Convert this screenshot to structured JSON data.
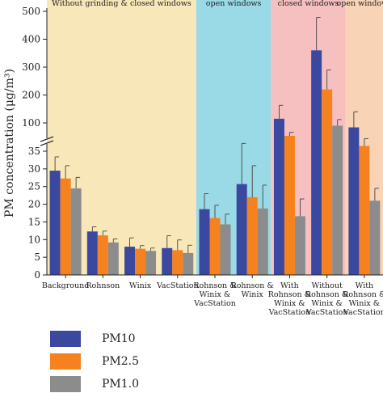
{
  "chart_data": {
    "type": "bar",
    "ylabel": "PM concentration (μg/m³)",
    "y_lower_ticks": [
      0,
      5,
      10,
      15,
      20,
      25,
      30,
      35
    ],
    "y_upper_ticks": [
      100,
      200,
      300,
      400,
      500
    ],
    "y_break": [
      37,
      60
    ],
    "categories": [
      [
        "Background"
      ],
      [
        "Rohnson"
      ],
      [
        "Winix"
      ],
      [
        "VacStation"
      ],
      [
        "Rohnson &",
        "Winix &",
        "VacStation"
      ],
      [
        "Rohnson &",
        "Winix"
      ],
      [
        "With",
        "Rohnson &",
        "Winix &",
        "VacStation"
      ],
      [
        "Without",
        "Rohnson &",
        "Winix &",
        "VacStation"
      ],
      [
        "With",
        "Rohnson &",
        "Winix &",
        "VacStation"
      ]
    ],
    "bands": [
      {
        "label": "Without grinding & closed windows",
        "color": "#f8e7b8",
        "from": 0,
        "to": 3
      },
      {
        "label": "open windows",
        "color": "#9ad9e6",
        "from": 4,
        "to": 5
      },
      {
        "label": "closed windows",
        "color": "#f6c0c0",
        "from": 6,
        "to": 7
      },
      {
        "label": "open windows",
        "color": "#f8d3b6",
        "from": 8,
        "to": 8
      }
    ],
    "series": [
      {
        "name": "PM10",
        "color": "#3a48a0",
        "values": [
          29.5,
          12.3,
          8.0,
          7.6,
          18.6,
          25.7,
          115,
          360,
          84
        ],
        "errors": [
          3.9,
          1.3,
          2.5,
          3.5,
          4.4,
          13,
          48,
          118,
          56
        ]
      },
      {
        "name": "PM2.5",
        "color": "#f5821f",
        "values": [
          27.3,
          11.2,
          7.4,
          7.0,
          16.1,
          22.0,
          56,
          220,
          36.5
        ],
        "errors": [
          3.6,
          1.2,
          0.9,
          2.9,
          3.6,
          8.9,
          10,
          70,
          13
        ]
      },
      {
        "name": "PM1.0",
        "color": "#8c8c8c",
        "values": [
          24.5,
          9.2,
          6.8,
          6.2,
          14.3,
          18.8,
          16.6,
          90,
          21
        ],
        "errors": [
          3.1,
          1.0,
          0.8,
          2.2,
          2.9,
          6.6,
          4.9,
          22,
          3.5
        ]
      }
    ]
  }
}
